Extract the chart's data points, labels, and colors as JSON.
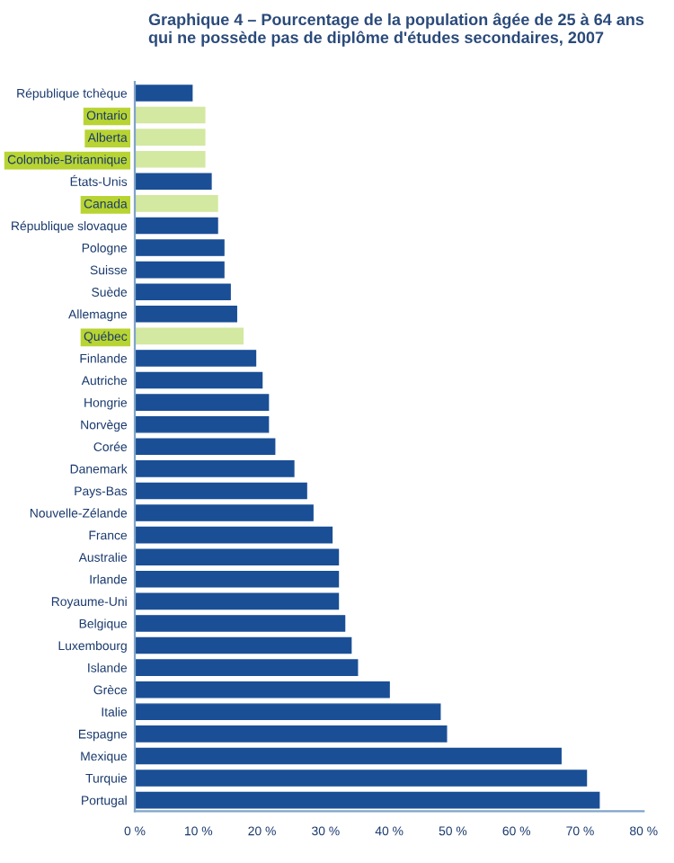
{
  "chart_data": {
    "type": "bar",
    "orientation": "horizontal",
    "title": "Graphique 4 – Pourcentage de la population âgée de 25 à 64 ans qui ne possède pas de diplôme d'études secondaires, 2007",
    "categories": [
      "République tchèque",
      "Ontario",
      "Alberta",
      "Colombie-Britannique",
      "États-Unis",
      "Canada",
      "République slovaque",
      "Pologne",
      "Suisse",
      "Suède",
      "Allemagne",
      "Québec",
      "Finlande",
      "Autriche",
      "Hongrie",
      "Norvège",
      "Corée",
      "Danemark",
      "Pays-Bas",
      "Nouvelle-Zélande",
      "France",
      "Australie",
      "Irlande",
      "Royaume-Uni",
      "Belgique",
      "Luxembourg",
      "Islande",
      "Grèce",
      "Italie",
      "Espagne",
      "Mexique",
      "Turquie",
      "Portugal"
    ],
    "values": [
      9,
      11,
      11,
      11,
      12,
      13,
      13,
      14,
      14,
      15,
      16,
      17,
      19,
      20,
      21,
      21,
      22,
      25,
      27,
      28,
      31,
      32,
      32,
      32,
      33,
      34,
      35,
      40,
      48,
      49,
      67,
      71,
      73
    ],
    "colors": [
      "#1a4f96",
      "#d3e8a0",
      "#d3e8a0",
      "#d3e8a0",
      "#1a4f96",
      "#d3e8a0",
      "#1a4f96",
      "#1a4f96",
      "#1a4f96",
      "#1a4f96",
      "#1a4f96",
      "#d3e8a0",
      "#1a4f96",
      "#1a4f96",
      "#1a4f96",
      "#1a4f96",
      "#1a4f96",
      "#1a4f96",
      "#1a4f96",
      "#1a4f96",
      "#1a4f96",
      "#1a4f96",
      "#1a4f96",
      "#1a4f96",
      "#1a4f96",
      "#1a4f96",
      "#1a4f96",
      "#1a4f96",
      "#1a4f96",
      "#1a4f96",
      "#1a4f96",
      "#1a4f96",
      "#1a4f96"
    ],
    "xlim": [
      0,
      80
    ],
    "xticks": [
      {
        "value": 0,
        "label": "0 %"
      },
      {
        "value": 10,
        "label": "10 %"
      },
      {
        "value": 20,
        "label": "20 %"
      },
      {
        "value": 30,
        "label": "30 %"
      },
      {
        "value": 40,
        "label": "40 %"
      },
      {
        "value": 50,
        "label": "50 %"
      },
      {
        "value": 60,
        "label": "60 %"
      },
      {
        "value": 70,
        "label": "70 %"
      },
      {
        "value": 80,
        "label": "80 %"
      }
    ],
    "grid": false
  }
}
